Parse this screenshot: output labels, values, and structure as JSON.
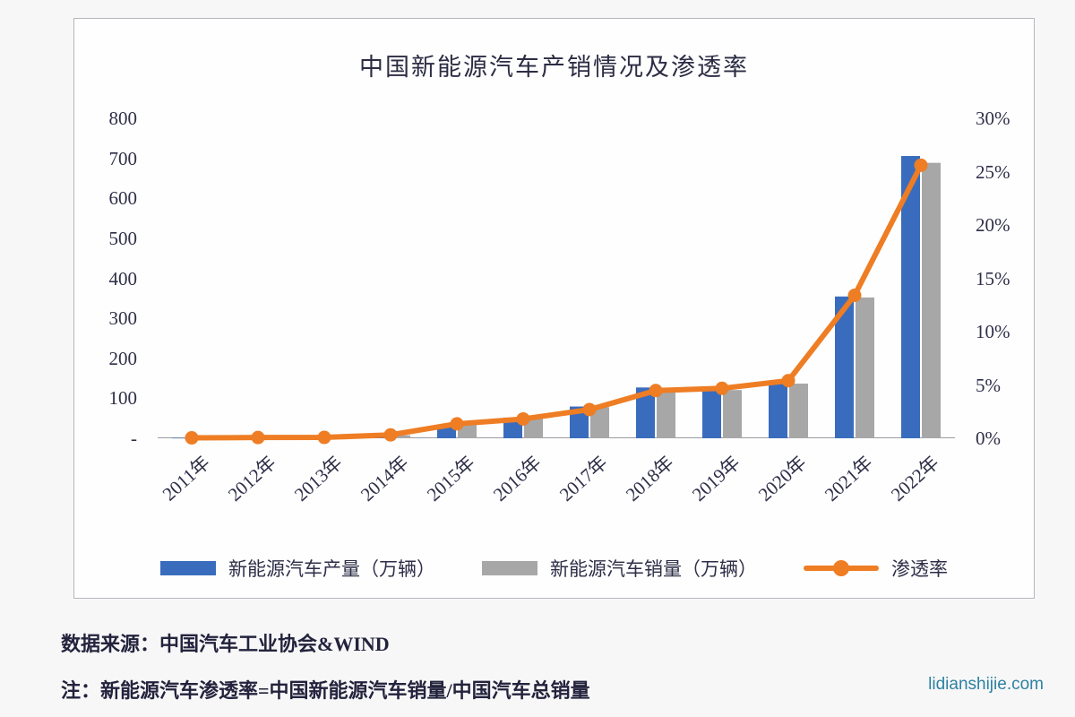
{
  "page": {
    "source_note": "数据来源：中国汽车工业协会&WIND",
    "footnote": "注：新能源汽车渗透率=中国新能源汽车销量/中国汽车总销量",
    "watermark": "lidianshijie.com"
  },
  "chart_data": {
    "type": "combo-bar-line",
    "title": "中国新能源汽车产销情况及渗透率",
    "categories": [
      "2011年",
      "2012年",
      "2013年",
      "2014年",
      "2015年",
      "2016年",
      "2017年",
      "2018年",
      "2019年",
      "2020年",
      "2021年",
      "2022年"
    ],
    "series": [
      {
        "name": "新能源汽车产量（万辆）",
        "type": "bar",
        "axis": "left",
        "color": "#3a6cbe",
        "values": [
          0.8,
          1.3,
          1.8,
          7.8,
          34.0,
          51.7,
          79.4,
          127.0,
          124.2,
          136.6,
          354.5,
          705.8
        ]
      },
      {
        "name": "新能源汽车销量（万辆）",
        "type": "bar",
        "axis": "left",
        "color": "#a7a7a7",
        "values": [
          0.8,
          1.3,
          1.8,
          7.5,
          33.1,
          50.7,
          77.7,
          125.6,
          120.6,
          136.7,
          352.1,
          688.7
        ]
      },
      {
        "name": "渗透率",
        "type": "line",
        "axis": "right",
        "color": "#ee7d24",
        "values": [
          0.04,
          0.07,
          0.08,
          0.32,
          1.35,
          1.81,
          2.69,
          4.47,
          4.68,
          5.4,
          13.4,
          25.6
        ]
      }
    ],
    "left_axis": {
      "min": 0,
      "max": 800,
      "ticks": [
        {
          "label": "800",
          "value": 800
        },
        {
          "label": "700",
          "value": 700
        },
        {
          "label": "600",
          "value": 600
        },
        {
          "label": "500",
          "value": 500
        },
        {
          "label": "400",
          "value": 400
        },
        {
          "label": "300",
          "value": 300
        },
        {
          "label": "200",
          "value": 200
        },
        {
          "label": "100",
          "value": 100
        },
        {
          "label": "-",
          "value": 0
        }
      ]
    },
    "right_axis": {
      "min": 0,
      "max": 30,
      "ticks": [
        {
          "label": "30%",
          "value": 30
        },
        {
          "label": "25%",
          "value": 25
        },
        {
          "label": "20%",
          "value": 20
        },
        {
          "label": "15%",
          "value": 15
        },
        {
          "label": "10%",
          "value": 10
        },
        {
          "label": "5%",
          "value": 5
        },
        {
          "label": "0%",
          "value": 0
        }
      ]
    },
    "legend_position": "bottom",
    "grid": false
  }
}
